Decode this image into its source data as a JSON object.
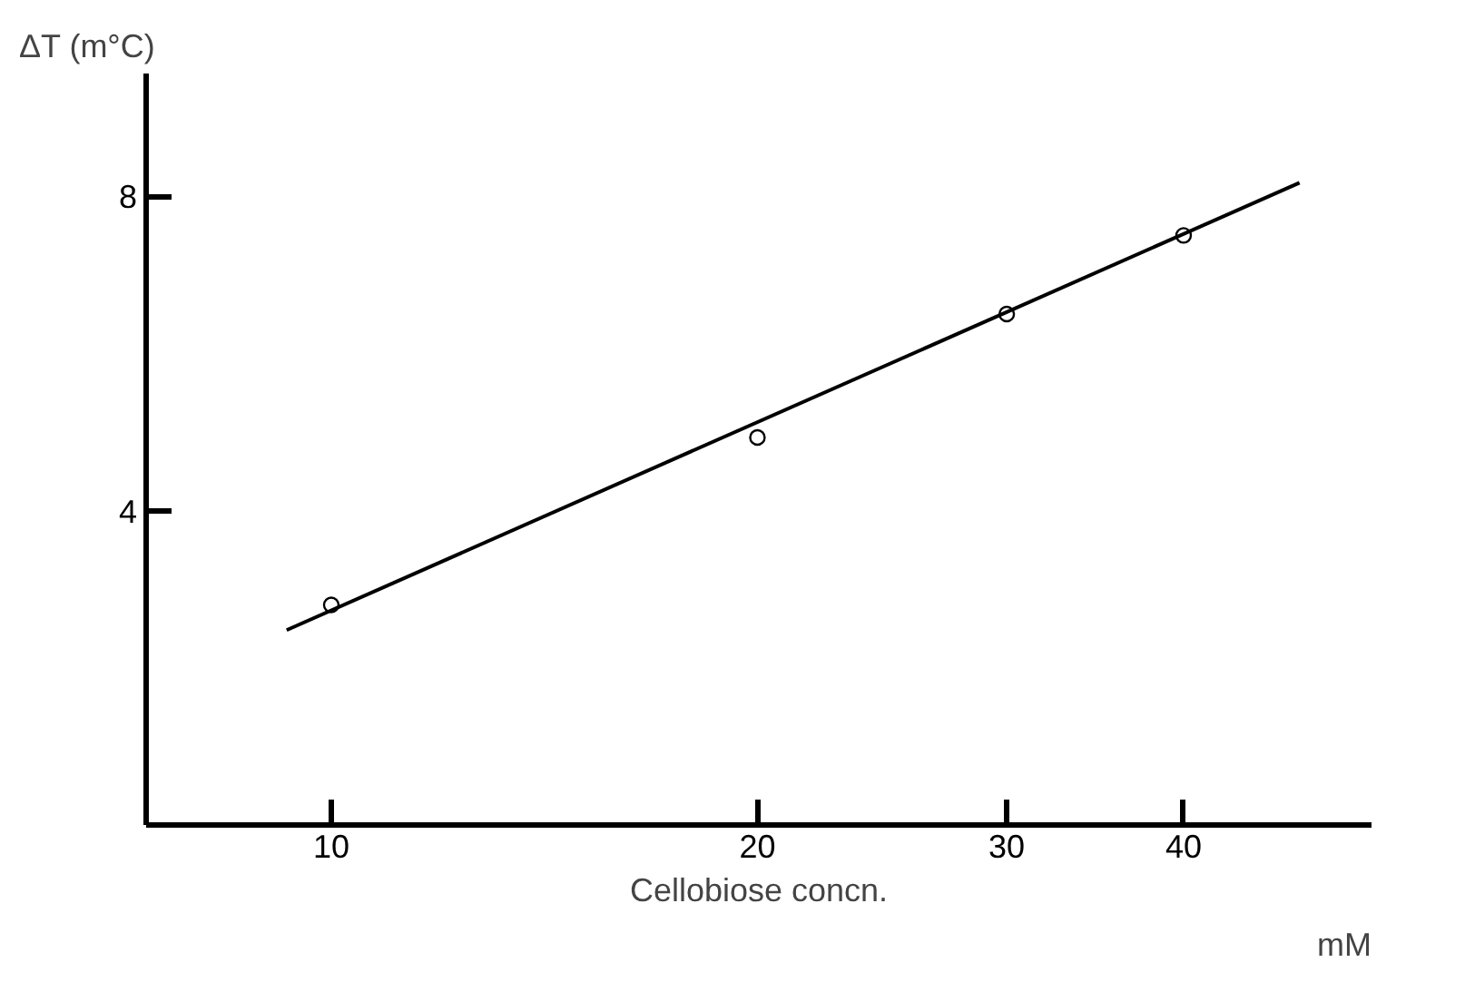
{
  "chart_data": {
    "type": "scatter",
    "xlabel": "Cellobiose concn.",
    "ylabel": "ΔT (m°C)",
    "log": "x",
    "xlim": [
      7.4,
      54.3
    ],
    "ylim": [
      0,
      9.56
    ],
    "xticks": [
      10,
      20,
      30,
      40
    ],
    "yticks": [
      4,
      8
    ],
    "grid": false,
    "annotations": [
      "mM"
    ],
    "series": [
      {
        "color": "#000000",
        "marker": "circle",
        "x": [
          10,
          20,
          30,
          40
        ],
        "values": [
          2.8,
          4.93,
          6.5,
          7.5
        ]
      },
      {
        "type": "line",
        "color": "#000000",
        "x": [
          9.3,
          48.3
        ],
        "values": [
          2.48,
          8.17
        ],
        "marker": "none",
        "line_style": "solid"
      }
    ]
  }
}
